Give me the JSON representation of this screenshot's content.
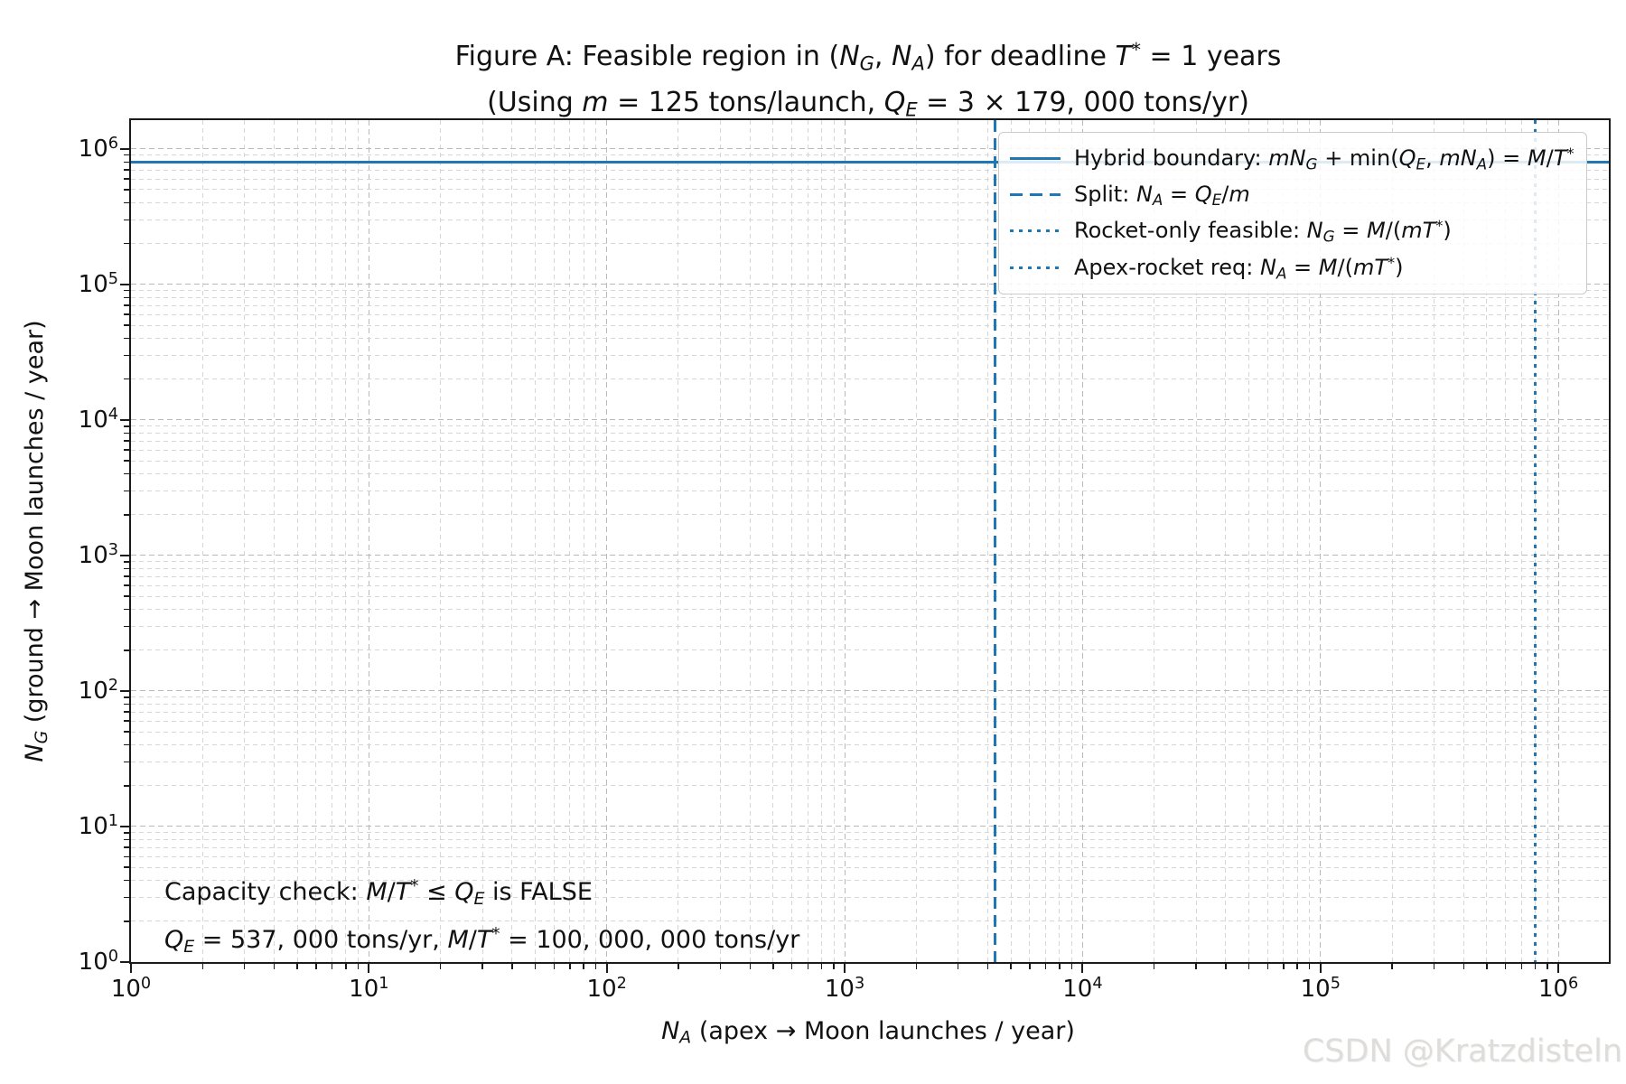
{
  "figure": {
    "title_line1": [
      {
        "t": "Figure A: Feasible region in ("
      },
      {
        "t": "N",
        "f": "i"
      },
      {
        "t": "G",
        "f": "sub"
      },
      {
        "t": ", "
      },
      {
        "t": "N",
        "f": "i"
      },
      {
        "t": "A",
        "f": "sub"
      },
      {
        "t": ") for deadline "
      },
      {
        "t": "T",
        "f": "i"
      },
      {
        "t": "*",
        "f": "sup"
      },
      {
        "t": " = 1 years"
      }
    ],
    "title_line2": [
      {
        "t": "(Using "
      },
      {
        "t": "m",
        "f": "i"
      },
      {
        "t": " = 125 tons/launch, "
      },
      {
        "t": "Q",
        "f": "i"
      },
      {
        "t": "E",
        "f": "sub"
      },
      {
        "t": " = 3 × 179, 000 tons/yr)"
      }
    ],
    "watermark": "CSDN @Kratzdisteln"
  },
  "chart_data": {
    "type": "line",
    "scale": "log-log",
    "grid": "major and minor dashed gray gridlines on",
    "legend_position": "upper right",
    "x_axis": {
      "label": [
        {
          "t": "N",
          "f": "i"
        },
        {
          "t": "A",
          "f": "sub"
        },
        {
          "t": " (apex → Moon launches / year)"
        }
      ],
      "min": 1,
      "max": 1630000,
      "tick_exponents": [
        0,
        1,
        2,
        3,
        4,
        5,
        6
      ]
    },
    "y_axis": {
      "label": [
        {
          "t": "N",
          "f": "i"
        },
        {
          "t": "G",
          "f": "sub"
        },
        {
          "t": " (ground → Moon launches / year)"
        }
      ],
      "min": 1,
      "max": 1630000,
      "tick_exponents": [
        0,
        1,
        2,
        3,
        4,
        5,
        6
      ]
    },
    "series": [
      {
        "name": "hybrid-boundary",
        "geometry": "hline",
        "value": 795704,
        "style": "solid",
        "color": "#1f77b4",
        "label": [
          {
            "t": "Hybrid boundary: "
          },
          {
            "t": "mN",
            "f": "i"
          },
          {
            "t": "G",
            "f": "sub"
          },
          {
            "t": " + min("
          },
          {
            "t": "Q",
            "f": "i"
          },
          {
            "t": "E",
            "f": "sub"
          },
          {
            "t": ", "
          },
          {
            "t": "mN",
            "f": "i"
          },
          {
            "t": "A",
            "f": "sub"
          },
          {
            "t": ") = "
          },
          {
            "t": "M",
            "f": "i"
          },
          {
            "t": "/"
          },
          {
            "t": "T",
            "f": "i"
          },
          {
            "t": "*",
            "f": "sup"
          }
        ]
      },
      {
        "name": "split",
        "geometry": "vline",
        "value": 4296,
        "style": "dashed",
        "color": "#1f77b4",
        "label": [
          {
            "t": "Split: "
          },
          {
            "t": "N",
            "f": "i"
          },
          {
            "t": "A",
            "f": "sub"
          },
          {
            "t": " = "
          },
          {
            "t": "Q",
            "f": "i"
          },
          {
            "t": "E",
            "f": "sub"
          },
          {
            "t": "/"
          },
          {
            "t": "m",
            "f": "i"
          }
        ]
      },
      {
        "name": "rocket-only-feasible",
        "geometry": "hline",
        "value": 800000,
        "style": "dotted",
        "color": "#1f77b4",
        "label": [
          {
            "t": "Rocket-only feasible: "
          },
          {
            "t": "N",
            "f": "i"
          },
          {
            "t": "G",
            "f": "sub"
          },
          {
            "t": " = "
          },
          {
            "t": "M",
            "f": "i"
          },
          {
            "t": "/("
          },
          {
            "t": "mT",
            "f": "i"
          },
          {
            "t": "*",
            "f": "sup"
          },
          {
            "t": ")"
          }
        ]
      },
      {
        "name": "apex-rocket-req",
        "geometry": "vline",
        "value": 800000,
        "style": "dotted",
        "color": "#1f77b4",
        "label": [
          {
            "t": "Apex-rocket req: "
          },
          {
            "t": "N",
            "f": "i"
          },
          {
            "t": "A",
            "f": "sub"
          },
          {
            "t": " = "
          },
          {
            "t": "M",
            "f": "i"
          },
          {
            "t": "/("
          },
          {
            "t": "mT",
            "f": "i"
          },
          {
            "t": "*",
            "f": "sup"
          },
          {
            "t": ")"
          }
        ]
      }
    ],
    "annotation": {
      "line1": [
        {
          "t": "Capacity check: "
        },
        {
          "t": "M",
          "f": "i"
        },
        {
          "t": "/"
        },
        {
          "t": "T",
          "f": "i"
        },
        {
          "t": "*",
          "f": "sup"
        },
        {
          "t": " ≤ "
        },
        {
          "t": "Q",
          "f": "i"
        },
        {
          "t": "E",
          "f": "sub"
        },
        {
          "t": " is FALSE"
        }
      ],
      "line2": [
        {
          "t": "Q",
          "f": "i"
        },
        {
          "t": "E",
          "f": "sub"
        },
        {
          "t": " = 537, 000 tons/yr,  "
        },
        {
          "t": "M",
          "f": "i"
        },
        {
          "t": "/"
        },
        {
          "t": "T",
          "f": "i"
        },
        {
          "t": "*",
          "f": "sup"
        },
        {
          "t": " = 100, 000, 000 tons/yr"
        }
      ]
    },
    "parameters": {
      "m_tons_per_launch": 125,
      "QE_tons_per_yr": 537000,
      "M_over_Tstar_tons_per_yr": 100000000,
      "T_star_years": 1
    }
  }
}
